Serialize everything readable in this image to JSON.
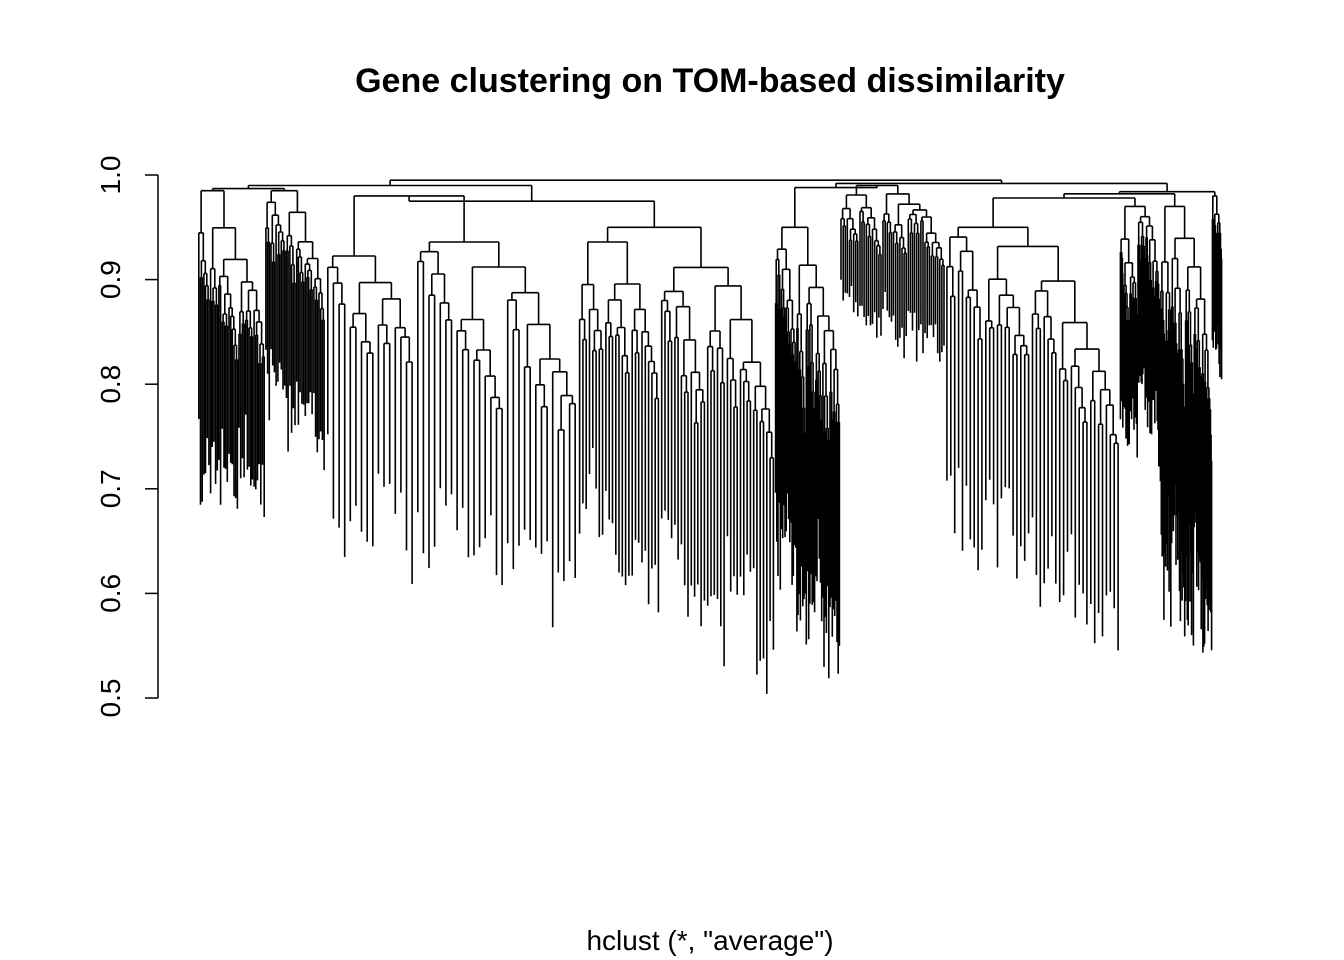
{
  "chart_data": {
    "type": "dendrogram",
    "title": "Gene clustering on TOM-based dissimilarity",
    "xlabel": "hclust (*, \"average\")",
    "ylabel": "",
    "ylim": [
      0.5,
      1.0
    ],
    "yticks": [
      "0.5",
      "0.6",
      "0.7",
      "0.8",
      "0.9",
      "1.0"
    ],
    "grid": false,
    "legend": "none",
    "line_color": "#000000",
    "root_merge_height": 0.995,
    "clusters": [
      {
        "order": 1,
        "merge_height": 0.985,
        "leaf_heights_min": 0.65,
        "branch_count": 40
      },
      {
        "order": 2,
        "merge_height": 0.985,
        "leaf_heights_min": 0.7,
        "branch_count": 35
      },
      {
        "order": 3,
        "merge_height": 0.98,
        "leaf_heights_min": 0.54,
        "branch_count": 45
      },
      {
        "order": 4,
        "merge_height": 0.95,
        "leaf_heights_min": 0.485,
        "branch_count": 60
      },
      {
        "order": 5,
        "merge_height": 0.95,
        "leaf_heights_min": 0.5,
        "branch_count": 55
      },
      {
        "order": 6,
        "merge_height": 0.99,
        "leaf_heights_min": 0.81,
        "branch_count": 50
      },
      {
        "order": 7,
        "merge_height": 0.95,
        "leaf_heights_min": 0.51,
        "branch_count": 45
      },
      {
        "order": 8,
        "merge_height": 0.97,
        "leaf_heights_min": 0.72,
        "branch_count": 50
      },
      {
        "order": 9,
        "merge_height": 0.97,
        "leaf_heights_min": 0.495,
        "branch_count": 60
      },
      {
        "order": 10,
        "merge_height": 0.98,
        "leaf_heights_min": 0.8,
        "branch_count": 12
      }
    ]
  }
}
